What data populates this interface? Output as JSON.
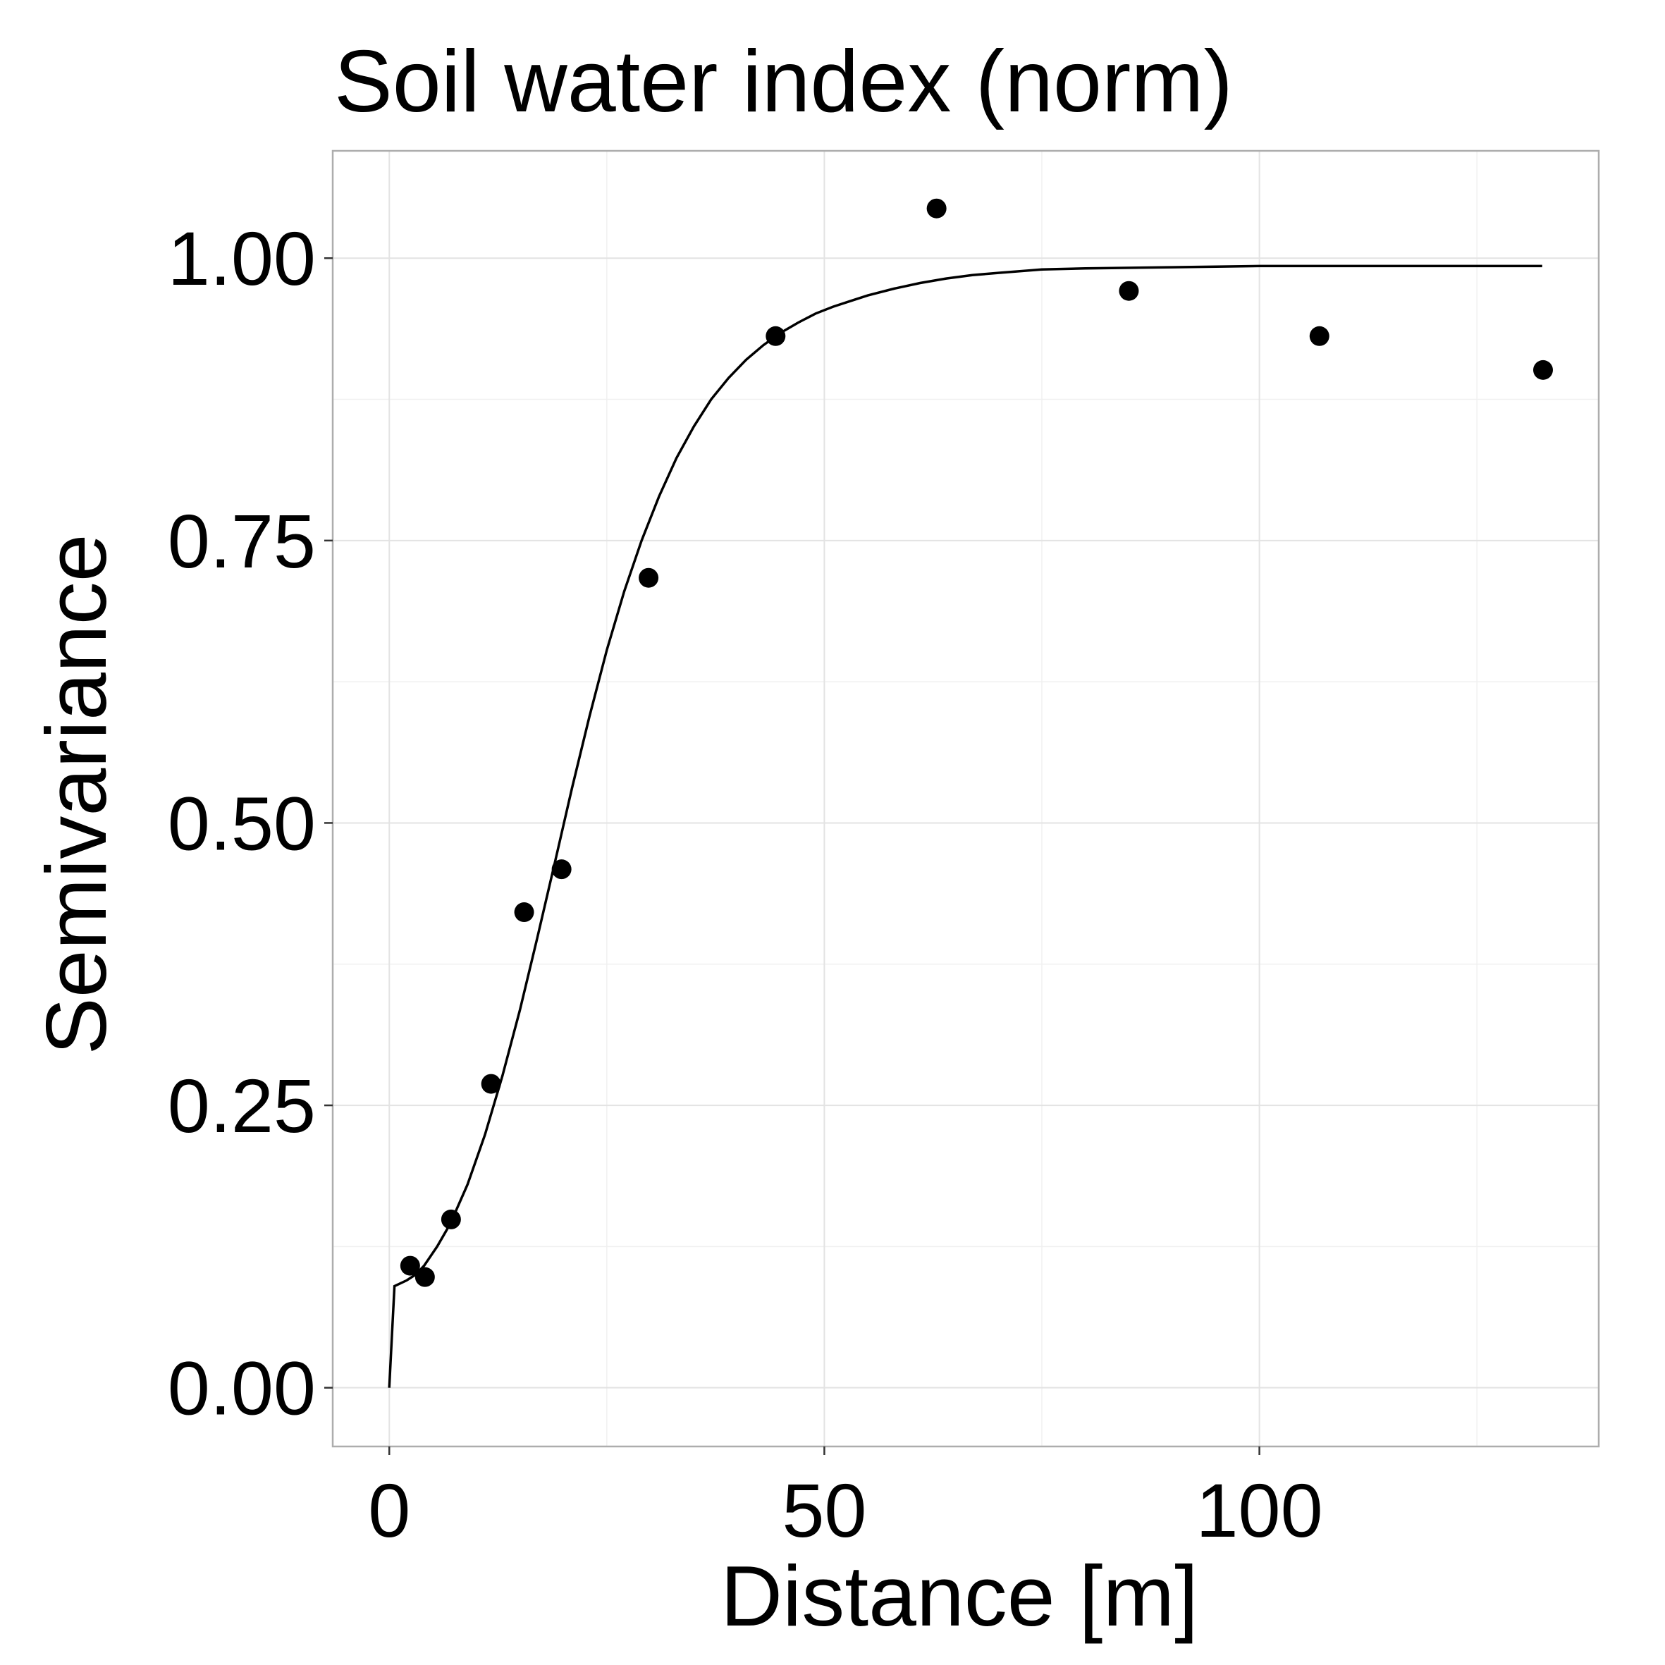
{
  "chart_data": {
    "type": "scatter",
    "title": "Soil water index (norm)",
    "xlabel": "Distance [m]",
    "ylabel": "Semivariance",
    "xlim": [
      -6.5,
      139
    ],
    "ylim": [
      -0.052,
      1.095
    ],
    "x_ticks": [
      0,
      50,
      100
    ],
    "x_tick_labels": [
      "0",
      "50",
      "100"
    ],
    "y_ticks": [
      0,
      0.25,
      0.5,
      0.75,
      1.0
    ],
    "y_tick_labels": [
      "0.00",
      "0.25",
      "0.50",
      "0.75",
      "1.00"
    ],
    "x_minor_ticks": [
      25,
      75,
      125
    ],
    "y_minor_ticks": [
      0.125,
      0.375,
      0.625,
      0.875
    ],
    "grid": true,
    "legend": "none",
    "series": [
      {
        "kind": "points",
        "x": [
          2.4,
          4.1,
          7.1,
          11.7,
          15.5,
          19.8,
          29.8,
          44.4,
          62.9,
          85.0,
          106.9,
          132.6
        ],
        "y": [
          0.108,
          0.098,
          0.149,
          0.269,
          0.421,
          0.459,
          0.717,
          0.931,
          1.044,
          0.971,
          0.931,
          0.901
        ]
      },
      {
        "kind": "model-line",
        "x": [
          0,
          0.6,
          2,
          3,
          4,
          5.5,
          7,
          9,
          11,
          13,
          15,
          17,
          19,
          21,
          23,
          25,
          27,
          29,
          31,
          33,
          35,
          37,
          39,
          41,
          43,
          45,
          47,
          49,
          51,
          53,
          55,
          58,
          61,
          64,
          67,
          70,
          75,
          80,
          90,
          100,
          110,
          120,
          132.5
        ],
        "y": [
          0.0,
          0.09,
          0.095,
          0.1,
          0.108,
          0.125,
          0.145,
          0.18,
          0.224,
          0.276,
          0.334,
          0.398,
          0.464,
          0.531,
          0.594,
          0.653,
          0.705,
          0.75,
          0.789,
          0.823,
          0.851,
          0.875,
          0.894,
          0.91,
          0.923,
          0.934,
          0.943,
          0.951,
          0.957,
          0.962,
          0.967,
          0.973,
          0.978,
          0.982,
          0.985,
          0.987,
          0.99,
          0.991,
          0.992,
          0.993,
          0.993,
          0.993,
          0.993
        ]
      }
    ]
  }
}
